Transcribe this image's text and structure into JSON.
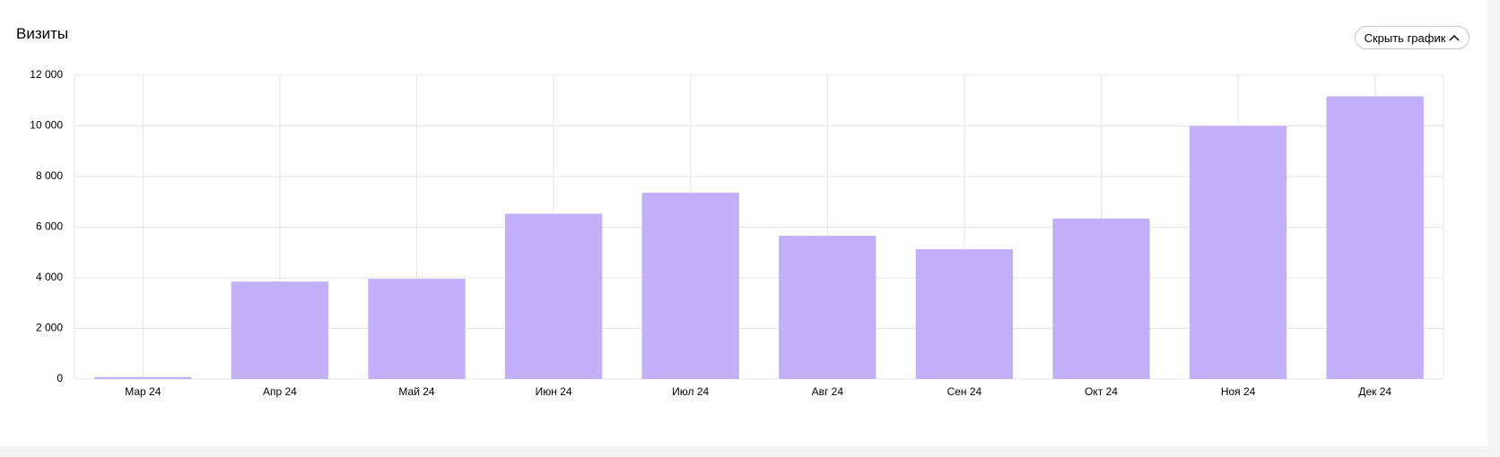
{
  "chart_data": {
    "type": "bar",
    "title": "Визиты",
    "button": "Скрыть график",
    "categories": [
      "Мар 24",
      "Апр 24",
      "Май 24",
      "Июн 24",
      "Июл 24",
      "Авг 24",
      "Сен 24",
      "Окт 24",
      "Ноя 24",
      "Дек 24"
    ],
    "values": [
      80,
      3850,
      3960,
      6530,
      7360,
      5660,
      5130,
      6340,
      10000,
      11170
    ],
    "color": "#c2b0f8",
    "ylim": [
      0,
      12000
    ],
    "yticks": [
      0,
      {
        "value": 2000,
        "label": "2 000"
      },
      {
        "value": 4000,
        "label": "4 000"
      },
      {
        "value": 6000,
        "label": "6 000"
      },
      {
        "value": 8000,
        "label": "8 000"
      },
      {
        "value": 10000,
        "label": "10 000"
      },
      {
        "value": 12000,
        "label": "12 000"
      }
    ],
    "grid": true
  }
}
